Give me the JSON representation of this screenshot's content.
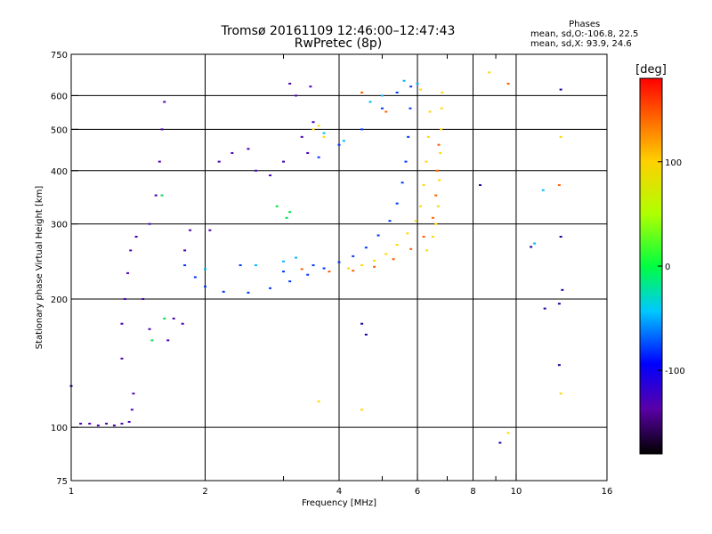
{
  "header": {
    "title": "Tromsø 20161109 12:46:00–12:47:43",
    "subtitle": "RwPretec (8p)",
    "phases_title": "Phases",
    "phases_o": "mean, sd,O:-106.8, 22.5",
    "phases_x": "mean, sd,X:  93.9, 24.6"
  },
  "chart_data": {
    "type": "scatter",
    "xlabel": "Frequency [MHz]",
    "ylabel": "Stationary phase Virtual Height [km]",
    "xscale": "log",
    "yscale": "log",
    "xlim": [
      1,
      16
    ],
    "ylim": [
      75,
      750
    ],
    "x_ticks": [
      1,
      2,
      4,
      6,
      8,
      10,
      16
    ],
    "x_tick_labels": [
      "1",
      "2",
      "4",
      "6",
      "8",
      "10",
      "16"
    ],
    "x_minor_ticks": [
      3,
      5,
      7,
      9
    ],
    "y_ticks": [
      75,
      100,
      200,
      300,
      400,
      500,
      600,
      750
    ],
    "y_tick_labels": [
      "75",
      "100",
      "200",
      "300",
      "400",
      "500",
      "600",
      "750"
    ],
    "grid": true,
    "colorbar": {
      "label": "[deg]",
      "range": [
        -180,
        180
      ],
      "ticks": [
        -100,
        0,
        100
      ],
      "tick_labels": [
        "-100",
        "0",
        "100"
      ]
    },
    "series": [
      {
        "phase_deg": -140,
        "color": "#4b00b4",
        "points": [
          [
            1.05,
            102
          ],
          [
            1.1,
            102
          ],
          [
            1.15,
            101
          ],
          [
            1.2,
            102
          ],
          [
            1.25,
            101
          ],
          [
            1.3,
            102
          ],
          [
            1.35,
            103
          ],
          [
            1.37,
            110
          ],
          [
            1.38,
            120
          ],
          [
            1.3,
            145
          ],
          [
            1.3,
            175
          ],
          [
            1.32,
            200
          ],
          [
            1.34,
            230
          ],
          [
            1.36,
            260
          ],
          [
            1.4,
            280
          ],
          [
            1.45,
            200
          ],
          [
            1.5,
            170
          ],
          [
            1.5,
            300
          ],
          [
            1.55,
            350
          ],
          [
            1.58,
            420
          ],
          [
            1.6,
            500
          ],
          [
            1.62,
            580
          ],
          [
            1.65,
            160
          ],
          [
            1.7,
            180
          ],
          [
            1.78,
            175
          ],
          [
            1.8,
            260
          ],
          [
            1.85,
            290
          ],
          [
            2.05,
            290
          ],
          [
            2.15,
            420
          ],
          [
            2.3,
            440
          ],
          [
            2.5,
            450
          ],
          [
            2.6,
            400
          ],
          [
            2.8,
            390
          ],
          [
            3.0,
            420
          ],
          [
            3.1,
            640
          ],
          [
            3.2,
            600
          ],
          [
            3.3,
            480
          ],
          [
            3.4,
            440
          ],
          [
            3.45,
            630
          ],
          [
            3.5,
            520
          ]
        ]
      },
      {
        "phase_deg": -110,
        "color": "#0038ff",
        "points": [
          [
            1.8,
            240
          ],
          [
            1.9,
            225
          ],
          [
            2.0,
            214
          ],
          [
            2.2,
            208
          ],
          [
            2.5,
            207
          ],
          [
            2.8,
            212
          ],
          [
            3.1,
            220
          ],
          [
            3.4,
            228
          ],
          [
            3.7,
            236
          ],
          [
            4.0,
            244
          ],
          [
            4.3,
            252
          ],
          [
            4.6,
            264
          ],
          [
            4.9,
            282
          ],
          [
            5.2,
            305
          ],
          [
            5.4,
            335
          ],
          [
            5.55,
            375
          ],
          [
            5.65,
            420
          ],
          [
            5.72,
            480
          ],
          [
            5.78,
            560
          ],
          [
            5.8,
            630
          ],
          [
            3.6,
            430
          ],
          [
            4.0,
            460
          ],
          [
            4.5,
            500
          ],
          [
            5.0,
            560
          ],
          [
            5.4,
            610
          ],
          [
            2.4,
            240
          ],
          [
            3.0,
            232
          ],
          [
            3.5,
            240
          ]
        ]
      },
      {
        "phase_deg": 30,
        "color": "#00e050",
        "points": [
          [
            1.6,
            350
          ],
          [
            1.62,
            180
          ],
          [
            1.52,
            160
          ],
          [
            2.9,
            330
          ],
          [
            3.05,
            310
          ],
          [
            3.1,
            320
          ]
        ]
      },
      {
        "phase_deg": 80,
        "color": "#ffd800",
        "points": [
          [
            4.2,
            236
          ],
          [
            4.5,
            240
          ],
          [
            4.8,
            246
          ],
          [
            5.1,
            255
          ],
          [
            5.4,
            268
          ],
          [
            5.7,
            285
          ],
          [
            5.95,
            305
          ],
          [
            6.1,
            330
          ],
          [
            6.2,
            370
          ],
          [
            6.28,
            420
          ],
          [
            6.35,
            480
          ],
          [
            6.4,
            550
          ],
          [
            6.1,
            620
          ],
          [
            6.3,
            260
          ],
          [
            6.5,
            280
          ],
          [
            6.6,
            300
          ],
          [
            6.68,
            330
          ],
          [
            6.72,
            380
          ],
          [
            6.75,
            440
          ],
          [
            6.78,
            500
          ],
          [
            6.8,
            560
          ],
          [
            6.82,
            610
          ],
          [
            3.5,
            500
          ],
          [
            3.6,
            510
          ],
          [
            3.7,
            480
          ],
          [
            4.5,
            110
          ],
          [
            8.7,
            680
          ],
          [
            9.6,
            97
          ],
          [
            12.6,
            120
          ],
          [
            12.6,
            480
          ],
          [
            3.6,
            115
          ]
        ]
      },
      {
        "phase_deg": 140,
        "color": "#ff6000",
        "points": [
          [
            3.3,
            235
          ],
          [
            3.8,
            232
          ],
          [
            4.3,
            233
          ],
          [
            4.8,
            238
          ],
          [
            5.3,
            248
          ],
          [
            5.8,
            262
          ],
          [
            6.2,
            280
          ],
          [
            6.5,
            310
          ],
          [
            6.6,
            350
          ],
          [
            6.65,
            400
          ],
          [
            6.7,
            460
          ],
          [
            9.6,
            640
          ],
          [
            12.5,
            370
          ],
          [
            4.5,
            610
          ],
          [
            5.1,
            550
          ]
        ]
      },
      {
        "phase_deg": -60,
        "color": "#00b8ff",
        "points": [
          [
            2.0,
            235
          ],
          [
            2.6,
            240
          ],
          [
            3.0,
            245
          ],
          [
            3.2,
            250
          ],
          [
            3.7,
            490
          ],
          [
            4.1,
            470
          ],
          [
            4.7,
            580
          ],
          [
            5.0,
            600
          ],
          [
            5.6,
            650
          ],
          [
            6.0,
            640
          ],
          [
            11.0,
            270
          ],
          [
            11.5,
            360
          ]
        ]
      },
      {
        "phase_deg": -135,
        "color": "#2000a0",
        "points": [
          [
            1.0,
            125
          ],
          [
            8.3,
            370
          ],
          [
            9.2,
            92
          ],
          [
            10.8,
            265
          ],
          [
            11.6,
            190
          ],
          [
            12.5,
            195
          ],
          [
            12.6,
            620
          ],
          [
            12.6,
            280
          ],
          [
            12.7,
            210
          ],
          [
            12.5,
            140
          ],
          [
            4.5,
            175
          ],
          [
            4.6,
            165
          ]
        ]
      }
    ]
  }
}
